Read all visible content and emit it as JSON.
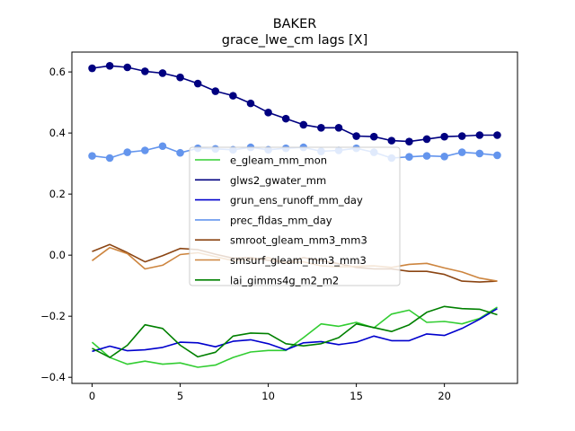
{
  "chart_data": {
    "type": "line",
    "title": "BAKER",
    "subtitle": "grace_lwe_cm lags [X]",
    "xlabel": "",
    "ylabel": "",
    "xlim": [
      -1.15,
      24.15
    ],
    "ylim": [
      -0.42,
      0.665
    ],
    "x": [
      0,
      1,
      2,
      3,
      4,
      5,
      6,
      7,
      8,
      9,
      10,
      11,
      12,
      13,
      14,
      15,
      16,
      17,
      18,
      19,
      20,
      21,
      22,
      23
    ],
    "xticks": [
      0,
      5,
      10,
      15,
      20
    ],
    "xtick_labels": [
      "0",
      "5",
      "10",
      "15",
      "20"
    ],
    "yticks": [
      -0.4,
      -0.2,
      0.0,
      0.2,
      0.4,
      0.6
    ],
    "ytick_labels": [
      "−0.4",
      "−0.2",
      "0.0",
      "0.2",
      "0.4",
      "0.6"
    ],
    "grid": false,
    "legend_position": "center",
    "series": [
      {
        "name": "e_gleam_mm_mon",
        "color": "#32cd32",
        "marker": false,
        "values": [
          -0.285,
          -0.335,
          -0.357,
          -0.347,
          -0.357,
          -0.353,
          -0.367,
          -0.36,
          -0.335,
          -0.317,
          -0.312,
          -0.312,
          -0.27,
          -0.225,
          -0.233,
          -0.22,
          -0.238,
          -0.193,
          -0.18,
          -0.22,
          -0.217,
          -0.225,
          -0.207,
          -0.17
        ]
      },
      {
        "name": "glws2_gwater_mm",
        "color": "#000080",
        "marker": true,
        "values": [
          0.612,
          0.62,
          0.615,
          0.602,
          0.596,
          0.582,
          0.562,
          0.537,
          0.522,
          0.497,
          0.467,
          0.447,
          0.427,
          0.417,
          0.417,
          0.39,
          0.388,
          0.375,
          0.372,
          0.38,
          0.388,
          0.39,
          0.393,
          0.393
        ]
      },
      {
        "name": "grun_ens_runoff_mm_day",
        "color": "#0000cd",
        "marker": false,
        "values": [
          -0.315,
          -0.298,
          -0.313,
          -0.31,
          -0.302,
          -0.285,
          -0.287,
          -0.3,
          -0.282,
          -0.277,
          -0.29,
          -0.31,
          -0.287,
          -0.283,
          -0.293,
          -0.285,
          -0.265,
          -0.28,
          -0.28,
          -0.258,
          -0.263,
          -0.24,
          -0.21,
          -0.175
        ]
      },
      {
        "name": "prec_fldas_mm_day",
        "color": "#6495ed",
        "marker": true,
        "values": [
          0.325,
          0.318,
          0.337,
          0.343,
          0.357,
          0.335,
          0.35,
          0.348,
          0.345,
          0.353,
          0.345,
          0.35,
          0.353,
          0.34,
          0.343,
          0.35,
          0.337,
          0.318,
          0.322,
          0.325,
          0.323,
          0.337,
          0.333,
          0.327
        ]
      },
      {
        "name": "smroot_gleam_mm3_mm3",
        "color": "#8b4513",
        "marker": false,
        "values": [
          0.012,
          0.035,
          0.008,
          -0.022,
          -0.002,
          0.022,
          0.018,
          0.003,
          -0.01,
          -0.008,
          -0.017,
          -0.025,
          -0.008,
          -0.018,
          -0.028,
          -0.04,
          -0.045,
          -0.045,
          -0.053,
          -0.053,
          -0.063,
          -0.085,
          -0.088,
          -0.085
        ]
      },
      {
        "name": "smsurf_gleam_mm3_mm3",
        "color": "#cd853f",
        "marker": false,
        "values": [
          -0.018,
          0.025,
          0.005,
          -0.045,
          -0.033,
          0.002,
          0.008,
          -0.005,
          -0.018,
          -0.015,
          -0.008,
          -0.025,
          -0.022,
          -0.035,
          -0.038,
          -0.037,
          -0.035,
          -0.04,
          -0.03,
          -0.027,
          -0.042,
          -0.055,
          -0.075,
          -0.085
        ]
      },
      {
        "name": "lai_gimms4g_m2_m2",
        "color": "#008000",
        "marker": false,
        "values": [
          -0.305,
          -0.335,
          -0.295,
          -0.228,
          -0.24,
          -0.295,
          -0.333,
          -0.318,
          -0.265,
          -0.255,
          -0.257,
          -0.29,
          -0.297,
          -0.29,
          -0.27,
          -0.225,
          -0.237,
          -0.25,
          -0.228,
          -0.187,
          -0.168,
          -0.175,
          -0.177,
          -0.195
        ]
      }
    ]
  }
}
